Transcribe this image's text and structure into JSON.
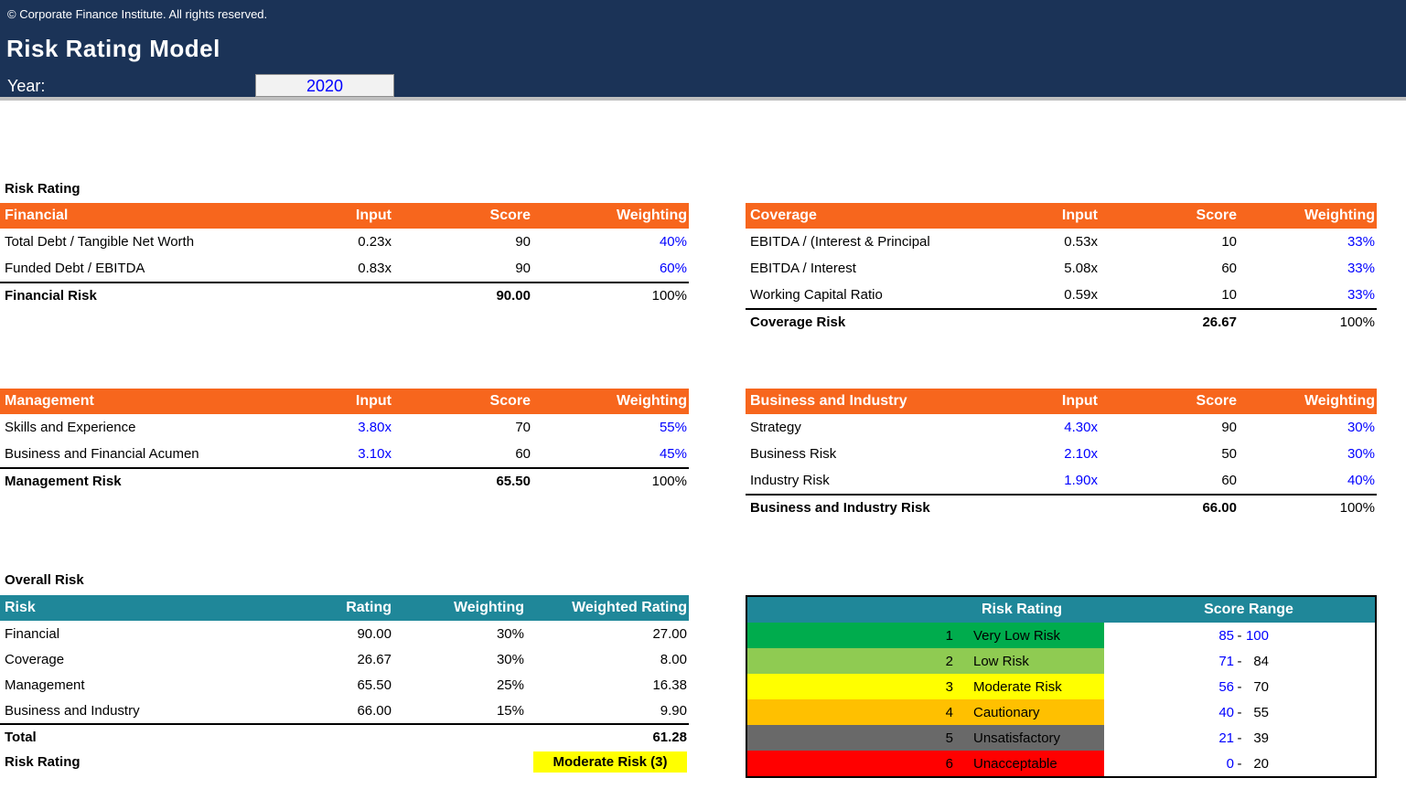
{
  "colors": {
    "navy": "#1B3357",
    "orange": "#F7661D",
    "teal": "#1F8799",
    "blue": "#0000FF",
    "yellow": "#FFFF00",
    "silver": "#BFBFBF",
    "yearbox": "#F2F2F2"
  },
  "header": {
    "copyright": "© Corporate Finance Institute. All rights reserved.",
    "title": "Risk Rating Model",
    "year_label": "Year:",
    "year_value": "2020"
  },
  "sections": {
    "risk_rating_label": "Risk Rating",
    "overall_risk_label": "Overall Risk"
  },
  "risk_tables": {
    "financial": {
      "title": "Financial",
      "columns": [
        "Input",
        "Score",
        "Weighting"
      ],
      "rows": [
        {
          "label": "Total Debt / Tangible Net Worth",
          "input": "0.23x",
          "input_blue": false,
          "score": "90",
          "weighting": "40%"
        },
        {
          "label": "Funded Debt / EBITDA",
          "input": "0.83x",
          "input_blue": false,
          "score": "90",
          "weighting": "60%"
        }
      ],
      "total": {
        "label": "Financial Risk",
        "score": "90.00",
        "weighting": "100%"
      }
    },
    "coverage": {
      "title": "Coverage",
      "columns": [
        "Input",
        "Score",
        "Weighting"
      ],
      "rows": [
        {
          "label": "EBITDA / (Interest & Principal",
          "input": "0.53x",
          "input_blue": false,
          "score": "10",
          "weighting": "33%"
        },
        {
          "label": "EBITDA / Interest",
          "input": "5.08x",
          "input_blue": false,
          "score": "60",
          "weighting": "33%"
        },
        {
          "label": "Working Capital Ratio",
          "input": "0.59x",
          "input_blue": false,
          "score": "10",
          "weighting": "33%"
        }
      ],
      "total": {
        "label": "Coverage Risk",
        "score": "26.67",
        "weighting": "100%"
      }
    },
    "management": {
      "title": "Management",
      "columns": [
        "Input",
        "Score",
        "Weighting"
      ],
      "rows": [
        {
          "label": "Skills and Experience",
          "input": "3.80x",
          "input_blue": true,
          "score": "70",
          "weighting": "55%"
        },
        {
          "label": "Business and Financial Acumen",
          "input": "3.10x",
          "input_blue": true,
          "score": "60",
          "weighting": "45%"
        }
      ],
      "total": {
        "label": "Management Risk",
        "score": "65.50",
        "weighting": "100%"
      }
    },
    "business": {
      "title": "Business and Industry",
      "columns": [
        "Input",
        "Score",
        "Weighting"
      ],
      "rows": [
        {
          "label": "Strategy",
          "input": "4.30x",
          "input_blue": true,
          "score": "90",
          "weighting": "30%"
        },
        {
          "label": "Business Risk",
          "input": "2.10x",
          "input_blue": true,
          "score": "50",
          "weighting": "30%"
        },
        {
          "label": "Industry Risk",
          "input": "1.90x",
          "input_blue": true,
          "score": "60",
          "weighting": "40%"
        }
      ],
      "total": {
        "label": "Business and Industry Risk",
        "score": "66.00",
        "weighting": "100%"
      }
    }
  },
  "overall": {
    "columns": [
      "Risk",
      "Rating",
      "Weighting",
      "Weighted Rating"
    ],
    "rows": [
      {
        "label": "Financial",
        "rating": "90.00",
        "weighting": "30%",
        "weighted": "27.00"
      },
      {
        "label": "Coverage",
        "rating": "26.67",
        "weighting": "30%",
        "weighted": "8.00"
      },
      {
        "label": "Management",
        "rating": "65.50",
        "weighting": "25%",
        "weighted": "16.38"
      },
      {
        "label": "Business and Industry",
        "rating": "66.00",
        "weighting": "15%",
        "weighted": "9.90"
      }
    ],
    "total": {
      "label": "Total",
      "value": "61.28"
    },
    "rating_result": {
      "label": "Risk Rating",
      "value": "Moderate Risk (3)"
    }
  },
  "legend": {
    "columns": [
      "Risk Rating",
      "Score Range"
    ],
    "rows": [
      {
        "num": "1",
        "label": "Very Low Risk",
        "color": "#00AC4D",
        "low": "85",
        "high": "100",
        "high_blue": true
      },
      {
        "num": "2",
        "label": "Low Risk",
        "color": "#8FCB52",
        "low": "71",
        "high": "84",
        "high_blue": false
      },
      {
        "num": "3",
        "label": "Moderate Risk",
        "color": "#FFFF00",
        "low": "56",
        "high": "70",
        "high_blue": false
      },
      {
        "num": "4",
        "label": "Cautionary",
        "color": "#FFC000",
        "low": "40",
        "high": "55",
        "high_blue": false
      },
      {
        "num": "5",
        "label": "Unsatisfactory",
        "color": "#696969",
        "low": "21",
        "high": "39",
        "high_blue": false
      },
      {
        "num": "6",
        "label": "Unacceptable",
        "color": "#FF0000",
        "low": "0",
        "high": "20",
        "high_blue": false
      }
    ]
  }
}
